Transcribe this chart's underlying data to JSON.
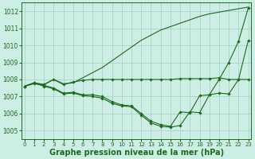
{
  "background_color": "#cceee4",
  "grid_color": "#aad4c8",
  "line_color": "#1a6b1a",
  "xlabel": "Graphe pression niveau de la mer (hPa)",
  "xlabel_fontsize": 7,
  "ylim": [
    1004.5,
    1012.5
  ],
  "xlim": [
    -0.3,
    23.3
  ],
  "yticks": [
    1005,
    1006,
    1007,
    1008,
    1009,
    1010,
    1011,
    1012
  ],
  "xticks": [
    0,
    1,
    2,
    3,
    4,
    5,
    6,
    7,
    8,
    9,
    10,
    11,
    12,
    13,
    14,
    15,
    16,
    17,
    18,
    19,
    20,
    21,
    22,
    23
  ],
  "series": [
    {
      "x": [
        0,
        1,
        2,
        3,
        4,
        5,
        6,
        7,
        8,
        9,
        10,
        11,
        12,
        13,
        14,
        15,
        16,
        17,
        18,
        19,
        20,
        21,
        22,
        23
      ],
      "y": [
        1007.6,
        1007.8,
        1007.7,
        1008.0,
        1007.75,
        1007.8,
        1008.1,
        1008.4,
        1008.7,
        1009.1,
        1009.5,
        1009.9,
        1010.3,
        1010.6,
        1010.9,
        1011.1,
        1011.3,
        1011.5,
        1011.7,
        1011.85,
        1011.95,
        1012.05,
        1012.15,
        1012.25
      ],
      "markers": false
    },
    {
      "x": [
        0,
        1,
        2,
        3,
        4,
        5,
        6,
        7,
        8,
        9,
        10,
        11,
        12,
        13,
        14,
        15,
        16,
        17,
        18,
        19,
        20,
        21,
        22,
        23
      ],
      "y": [
        1007.6,
        1007.8,
        1007.7,
        1008.0,
        1007.7,
        1007.85,
        1007.95,
        1008.0,
        1008.0,
        1008.0,
        1008.0,
        1008.0,
        1008.0,
        1008.0,
        1008.0,
        1008.0,
        1008.05,
        1008.05,
        1008.05,
        1008.05,
        1008.1,
        1008.0,
        1008.0,
        1008.0
      ],
      "markers": true
    },
    {
      "x": [
        0,
        1,
        2,
        3,
        4,
        5,
        6,
        7,
        8,
        9,
        10,
        11,
        12,
        13,
        14,
        15,
        16,
        17,
        18,
        19,
        20,
        21,
        22,
        23
      ],
      "y": [
        1007.6,
        1007.75,
        1007.65,
        1007.5,
        1007.2,
        1007.25,
        1007.1,
        1007.1,
        1007.0,
        1006.7,
        1006.5,
        1006.45,
        1006.0,
        1005.55,
        1005.35,
        1005.25,
        1006.1,
        1006.05,
        1007.05,
        1007.1,
        1007.2,
        1007.15,
        1008.0,
        1010.3
      ],
      "markers": true
    },
    {
      "x": [
        0,
        1,
        2,
        3,
        4,
        5,
        6,
        7,
        8,
        9,
        10,
        11,
        12,
        13,
        14,
        15,
        16,
        17,
        18,
        19,
        20,
        21,
        22,
        23
      ],
      "y": [
        1007.6,
        1007.8,
        1007.6,
        1007.45,
        1007.15,
        1007.2,
        1007.05,
        1007.0,
        1006.9,
        1006.6,
        1006.45,
        1006.4,
        1005.9,
        1005.45,
        1005.25,
        1005.2,
        1005.3,
        1006.1,
        1006.05,
        1007.1,
        1008.0,
        1009.0,
        1010.25,
        1012.2
      ],
      "markers": true
    }
  ]
}
